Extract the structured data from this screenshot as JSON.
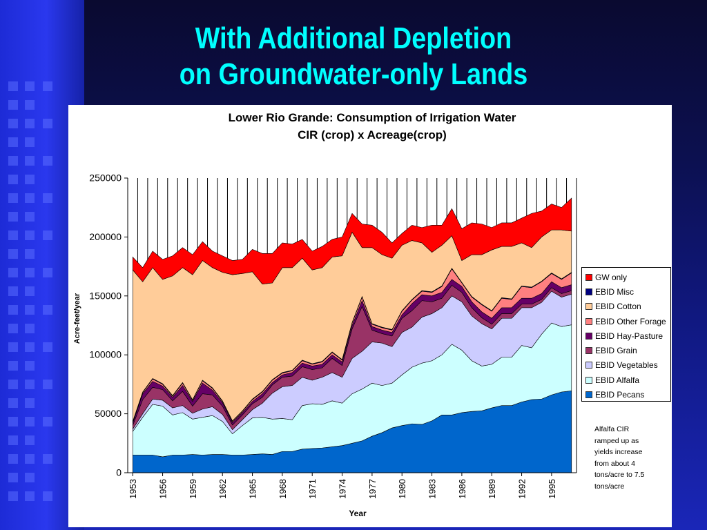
{
  "slide": {
    "title_line1": "With Additional Depletion",
    "title_line2": "on Groundwater-only Lands"
  },
  "colors": {
    "GW only": "#ff0000",
    "EBID Misc": "#000080",
    "EBID Cotton": "#ffcc99",
    "EBID Other Forage": "#ff8080",
    "EBID Hay-Pasture": "#660066",
    "EBID Grain": "#993366",
    "EBID Vegetables": "#ccccff",
    "EBID Alfalfa": "#ccffff",
    "EBID Pecans": "#0066cc"
  },
  "chart_data": {
    "type": "area",
    "stacked": true,
    "title": "Lower Rio Grande:  Consumption of Irrigation Water",
    "subtitle": "CIR (crop) x Acreage(crop)",
    "xlabel": "Year",
    "ylabel": "Acre-feet/year",
    "ylim": [
      0,
      250000
    ],
    "yticks": [
      0,
      50000,
      100000,
      150000,
      200000,
      250000
    ],
    "ytick_labels": [
      "0",
      "50000",
      "100000",
      "150000",
      "200000",
      "250000"
    ],
    "xtick_labels": [
      "1953",
      "1956",
      "1959",
      "1962",
      "1965",
      "1968",
      "1971",
      "1974",
      "1977",
      "1980",
      "1983",
      "1986",
      "1989",
      "1992",
      "1995"
    ],
    "grid": "vertical",
    "legend_position": "right",
    "x": [
      1953,
      1954,
      1955,
      1956,
      1957,
      1958,
      1959,
      1960,
      1961,
      1962,
      1963,
      1964,
      1965,
      1966,
      1967,
      1968,
      1969,
      1970,
      1971,
      1972,
      1973,
      1974,
      1975,
      1976,
      1977,
      1978,
      1979,
      1980,
      1981,
      1982,
      1983,
      1984,
      1985,
      1986,
      1987,
      1988,
      1989,
      1990,
      1991,
      1992,
      1993,
      1994,
      1995,
      1996,
      1997
    ],
    "series": [
      {
        "name": "EBID Pecans",
        "values": [
          15000,
          15000,
          15000,
          13500,
          15000,
          15000,
          15500,
          15000,
          15500,
          15500,
          15000,
          15000,
          15500,
          16000,
          15500,
          18000,
          18000,
          20000,
          20500,
          21000,
          22000,
          23000,
          25000,
          27000,
          31000,
          34000,
          38000,
          40000,
          41500,
          41000,
          44000,
          49000,
          49000,
          51000,
          52000,
          52500,
          55000,
          57000,
          57000,
          60000,
          62000,
          62500,
          66000,
          68500,
          69500
        ]
      },
      {
        "name": "EBID Alfalfa",
        "values": [
          20000,
          32000,
          43000,
          43000,
          34000,
          36000,
          30000,
          32000,
          33000,
          28000,
          18000,
          25000,
          31000,
          31000,
          30000,
          28000,
          27000,
          37000,
          38000,
          37000,
          39000,
          36000,
          42000,
          44000,
          45000,
          40000,
          38000,
          43000,
          48000,
          52000,
          51000,
          51000,
          60000,
          53000,
          43000,
          38000,
          37000,
          41000,
          41000,
          48000,
          44000,
          55000,
          61000,
          55500,
          56000
        ]
      },
      {
        "name": "EBID Vegetables",
        "values": [
          2000,
          3000,
          4500,
          5000,
          6000,
          6000,
          5000,
          7000,
          7500,
          6000,
          3500,
          5000,
          7000,
          12000,
          22000,
          27000,
          29000,
          24000,
          20000,
          23000,
          24000,
          22000,
          30000,
          32000,
          35000,
          36000,
          31000,
          36000,
          34000,
          39000,
          40000,
          40000,
          41000,
          41000,
          38000,
          36000,
          30000,
          33000,
          33000,
          32000,
          34000,
          27000,
          27000,
          25000,
          26000
        ]
      },
      {
        "name": "EBID Grain",
        "values": [
          3000,
          12000,
          10000,
          9000,
          6000,
          12000,
          6000,
          13000,
          10000,
          7000,
          4000,
          4000,
          5000,
          5000,
          7000,
          8000,
          8000,
          9000,
          9000,
          8000,
          12000,
          10000,
          25000,
          38000,
          10000,
          8000,
          9000,
          12000,
          14000,
          14000,
          10000,
          8000,
          9000,
          8000,
          7000,
          5000,
          4000,
          4000,
          4000,
          3000,
          3000,
          2500,
          3000,
          3000,
          3000
        ]
      },
      {
        "name": "EBID Hay-Pasture",
        "values": [
          2000,
          5000,
          5000,
          3000,
          3000,
          5000,
          4000,
          9000,
          4000,
          3000,
          2000,
          2000,
          2000,
          3000,
          2000,
          2000,
          3000,
          3000,
          3000,
          3000,
          3000,
          3000,
          3000,
          5000,
          3000,
          3000,
          3000,
          3000,
          6000,
          5000,
          5000,
          5000,
          5000,
          5000,
          5000,
          5000,
          5000,
          5000,
          5000,
          5000,
          5000,
          5000,
          5000,
          5000,
          5000
        ]
      },
      {
        "name": "EBID Other Forage",
        "values": [
          1000,
          1000,
          2000,
          1500,
          1000,
          2000,
          1000,
          2000,
          1500,
          1000,
          1000,
          1000,
          1500,
          1500,
          2000,
          1500,
          1500,
          2000,
          1500,
          2000,
          2000,
          1500,
          2000,
          3000,
          2000,
          2000,
          2000,
          3000,
          3000,
          3000,
          3000,
          5000,
          9000,
          3000,
          4000,
          6000,
          6000,
          8000,
          7000,
          10000,
          9000,
          10000,
          7000,
          7000,
          10000
        ]
      },
      {
        "name": "EBID Misc",
        "values": [
          500,
          500,
          500,
          500,
          500,
          500,
          500,
          500,
          500,
          500,
          500,
          500,
          500,
          500,
          500,
          500,
          500,
          500,
          500,
          500,
          500,
          500,
          500,
          500,
          500,
          500,
          500,
          500,
          500,
          500,
          500,
          500,
          500,
          500,
          500,
          500,
          500,
          500,
          500,
          500,
          500,
          500,
          500,
          500,
          500
        ]
      },
      {
        "name": "EBID Cotton",
        "values": [
          128500,
          93500,
          94000,
          88500,
          101500,
          97500,
          106000,
          101500,
          102000,
          109000,
          124000,
          116500,
          108000,
          91000,
          82000,
          89000,
          87000,
          86500,
          79500,
          79500,
          80500,
          88000,
          76500,
          41500,
          64500,
          61500,
          60500,
          55500,
          50000,
          40500,
          33500,
          34500,
          27500,
          18500,
          35500,
          42000,
          51500,
          43500,
          44500,
          36500,
          33500,
          37500,
          36500,
          41500,
          35000
        ]
      },
      {
        "name": "GW only",
        "values": [
          11000,
          12000,
          14000,
          17000,
          17000,
          17000,
          17000,
          16000,
          14000,
          14000,
          12000,
          12000,
          19000,
          26000,
          25000,
          21000,
          20000,
          16000,
          16000,
          18000,
          15000,
          16000,
          16000,
          20000,
          19000,
          19000,
          13000,
          10000,
          13000,
          13000,
          23000,
          17000,
          23000,
          27000,
          27000,
          26000,
          19000,
          20000,
          20000,
          21000,
          29000,
          22000,
          22000,
          19000,
          28000
        ]
      }
    ]
  },
  "legend": {
    "items": [
      "GW only",
      "EBID Misc",
      "EBID Cotton",
      "EBID Other Forage",
      "EBID Hay-Pasture",
      "EBID Grain",
      "EBID Vegetables",
      "EBID Alfalfa",
      "EBID Pecans"
    ]
  },
  "note": {
    "lines": [
      "Alfalfa CIR",
      "ramped up as",
      "yields increase",
      "from about 4",
      "tons/acre to 7.5",
      "tons/acre"
    ]
  }
}
